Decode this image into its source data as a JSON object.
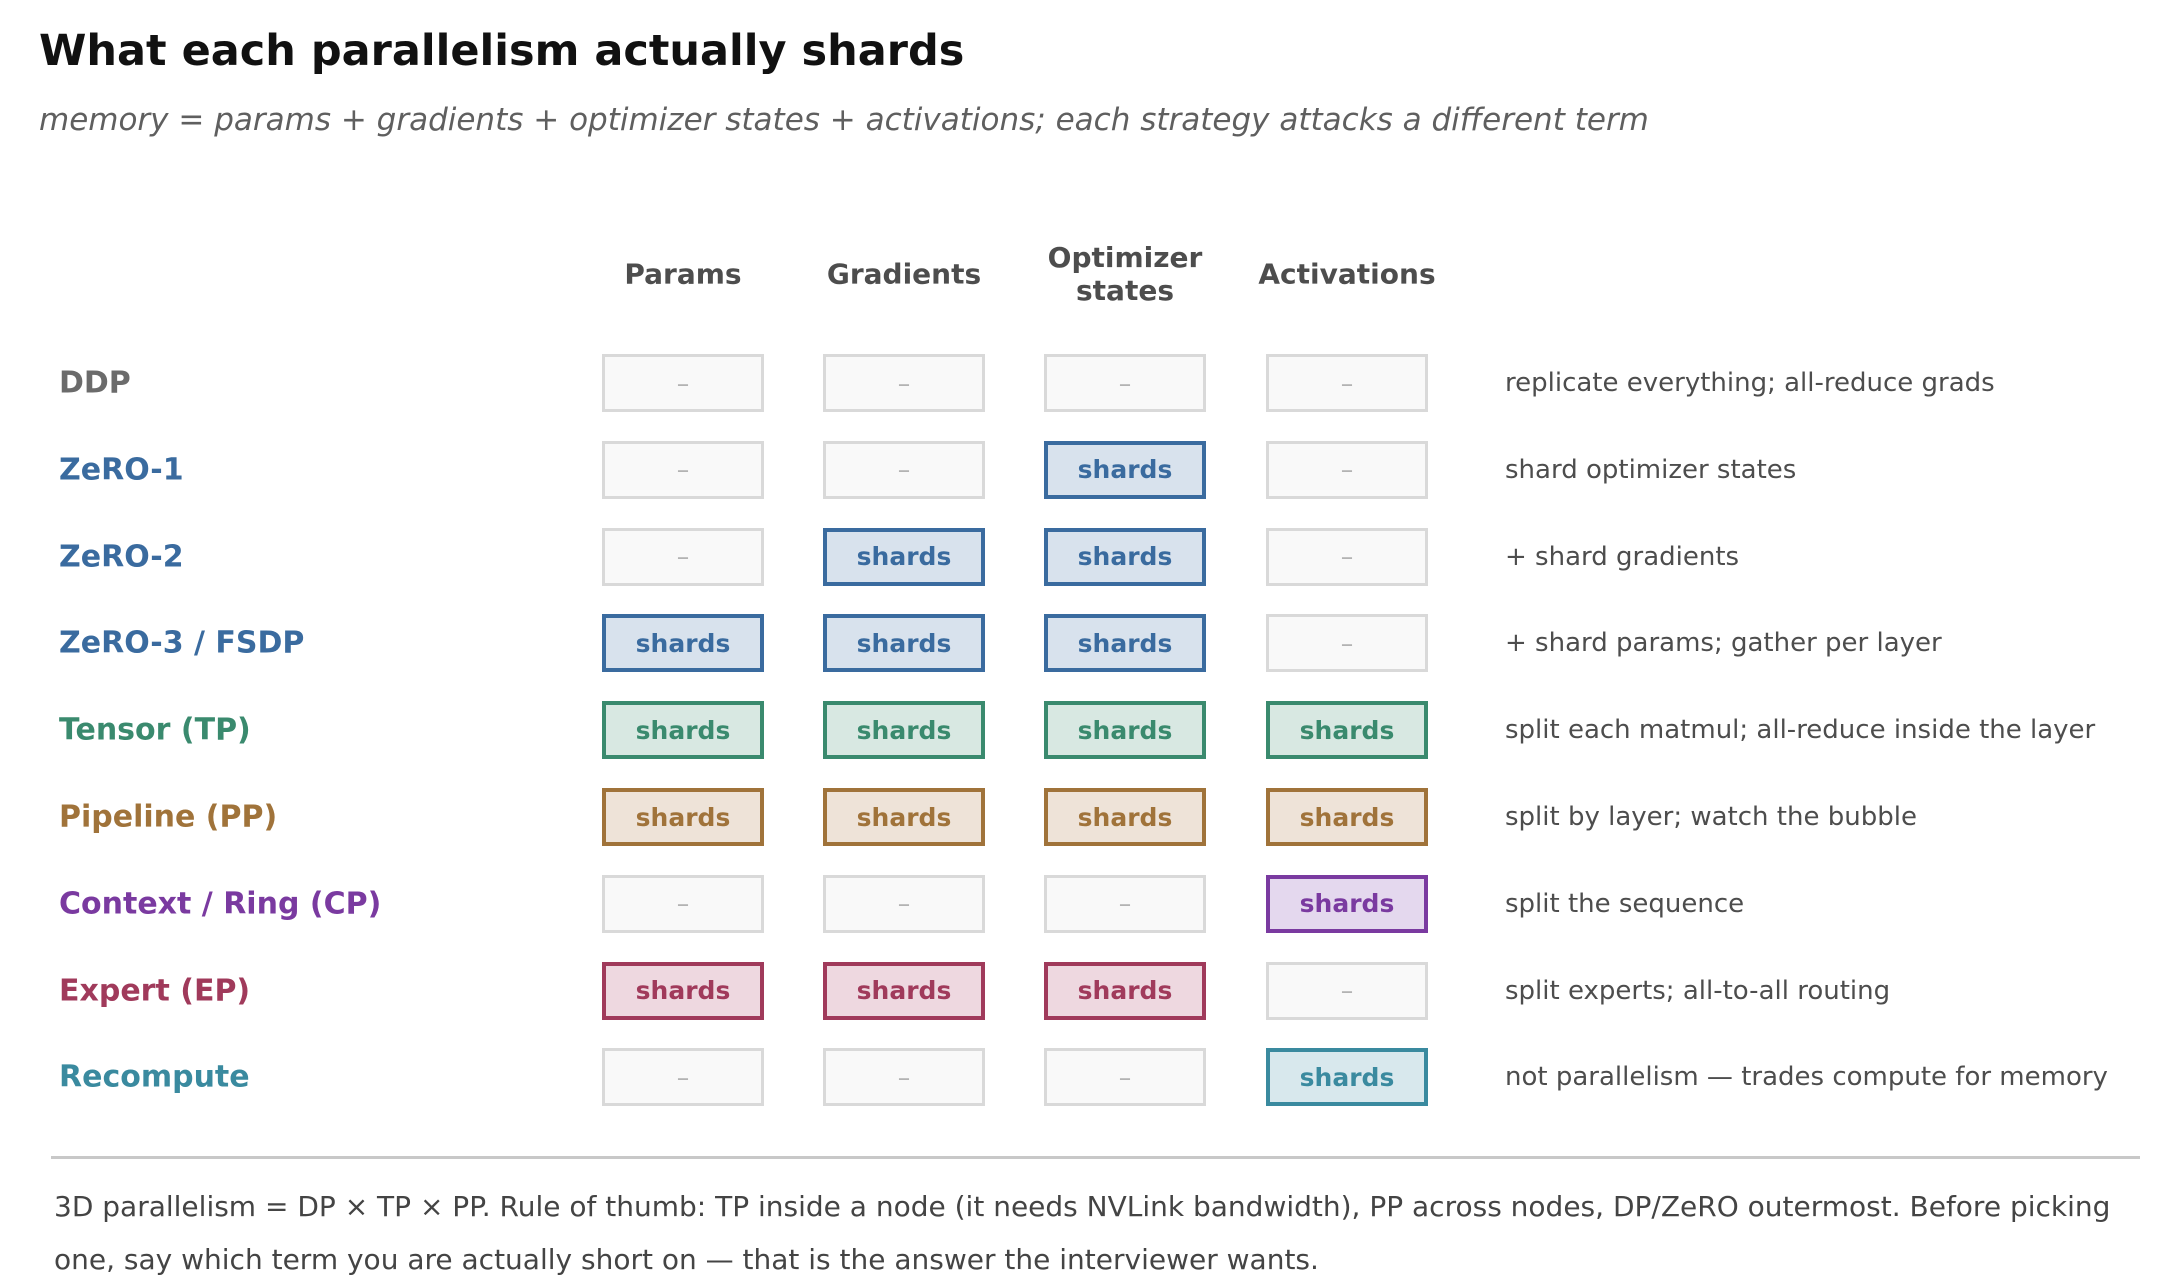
{
  "title": "What each parallelism actually shards",
  "subtitle": "memory = params + gradients + optimizer states + activations; each strategy attacks a different term",
  "columns": [
    "Params",
    "Gradients",
    "Optimizer\nstates",
    "Activations"
  ],
  "shard_label": "shards",
  "empty_label": "–",
  "rows": [
    {
      "label": "DDP",
      "color": "#6b6b6b",
      "fill": "#f9f9f9",
      "cells": [
        false,
        false,
        false,
        false
      ],
      "note": "replicate everything; all-reduce grads"
    },
    {
      "label": "ZeRO-1",
      "color": "#3a6b9f",
      "fill": "#d8e2ed",
      "cells": [
        false,
        false,
        true,
        false
      ],
      "note": "shard optimizer states"
    },
    {
      "label": "ZeRO-2",
      "color": "#3a6b9f",
      "fill": "#d8e2ed",
      "cells": [
        false,
        true,
        true,
        false
      ],
      "note": "+ shard gradients"
    },
    {
      "label": "ZeRO-3 / FSDP",
      "color": "#3a6b9f",
      "fill": "#d8e2ed",
      "cells": [
        true,
        true,
        true,
        false
      ],
      "note": "+ shard params; gather per layer"
    },
    {
      "label": "Tensor (TP)",
      "color": "#3a8a6e",
      "fill": "#d8e8e2",
      "cells": [
        true,
        true,
        true,
        true
      ],
      "note": "split each matmul; all-reduce inside the layer"
    },
    {
      "label": "Pipeline (PP)",
      "color": "#a0733a",
      "fill": "#eee3d8",
      "cells": [
        true,
        true,
        true,
        true
      ],
      "note": "split by layer; watch the bubble"
    },
    {
      "label": "Context / Ring (CP)",
      "color": "#7a3aa0",
      "fill": "#e4d8ee",
      "cells": [
        false,
        false,
        false,
        true
      ],
      "note": "split the sequence"
    },
    {
      "label": "Expert (EP)",
      "color": "#a03a5b",
      "fill": "#eed8e0",
      "cells": [
        true,
        true,
        true,
        false
      ],
      "note": "split experts; all-to-all routing"
    },
    {
      "label": "Recompute",
      "color": "#3a8a9f",
      "fill": "#d8e8ed",
      "cells": [
        false,
        false,
        false,
        true
      ],
      "note": "not parallelism — trades compute for memory"
    }
  ],
  "footer": "3D parallelism = DP × TP × PP. Rule of thumb: TP inside a node (it needs NVLink bandwidth), PP across nodes, DP/ZeRO outermost. Before picking one, say which term you are actually short on — that is the answer the interviewer wants."
}
